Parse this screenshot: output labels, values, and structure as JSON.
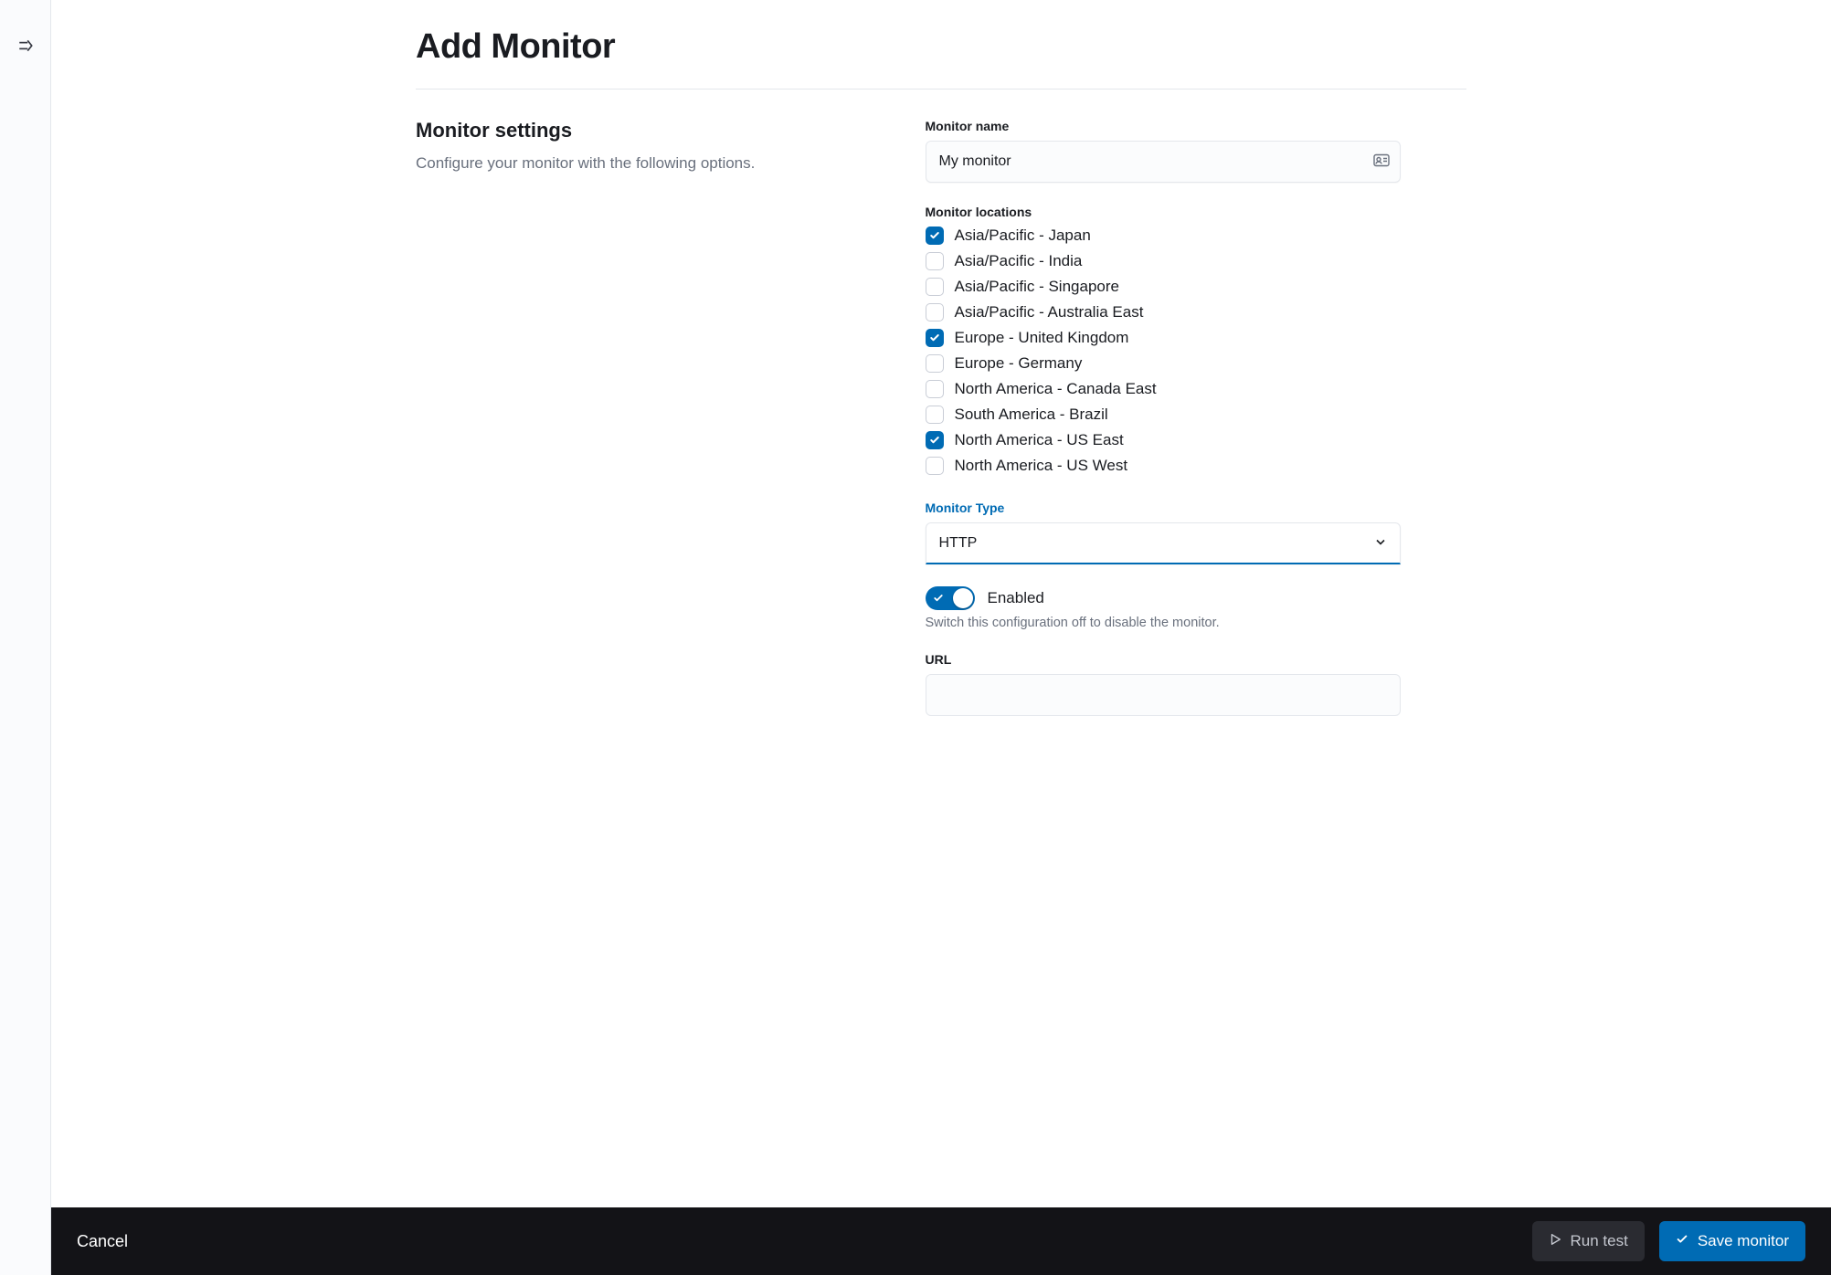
{
  "header": {
    "title": "Add Monitor"
  },
  "settings": {
    "section_title": "Monitor settings",
    "section_subtitle": "Configure your monitor with the following options."
  },
  "form": {
    "name_label": "Monitor name",
    "name_value": "My monitor",
    "locations_label": "Monitor locations",
    "locations": [
      {
        "label": "Asia/Pacific - Japan",
        "checked": true
      },
      {
        "label": "Asia/Pacific - India",
        "checked": false
      },
      {
        "label": "Asia/Pacific - Singapore",
        "checked": false
      },
      {
        "label": "Asia/Pacific - Australia East",
        "checked": false
      },
      {
        "label": "Europe - United Kingdom",
        "checked": true
      },
      {
        "label": "Europe - Germany",
        "checked": false
      },
      {
        "label": "North America - Canada East",
        "checked": false
      },
      {
        "label": "South America - Brazil",
        "checked": false
      },
      {
        "label": "North America - US East",
        "checked": true
      },
      {
        "label": "North America - US West",
        "checked": false
      }
    ],
    "type_label": "Monitor Type",
    "type_value": "HTTP",
    "enabled_label": "Enabled",
    "enabled_help": "Switch this configuration off to disable the monitor.",
    "url_label": "URL",
    "url_value": ""
  },
  "footer": {
    "cancel": "Cancel",
    "run_test": "Run test",
    "save": "Save monitor"
  },
  "colors": {
    "accent": "#006bb4",
    "text": "#1a1c21",
    "muted": "#69707d",
    "border": "#e4e7ec",
    "footer_bg": "#131317",
    "ghost_btn_bg": "#2a2b31"
  }
}
